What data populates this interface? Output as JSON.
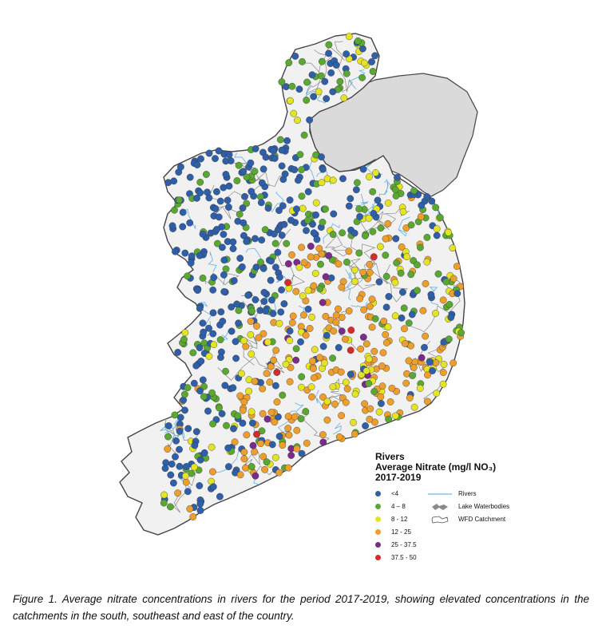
{
  "legend": {
    "title_line1": "Rivers",
    "title_line2": "Average Nitrate (mg/l NO₃)",
    "title_line3": "2017-2019",
    "classes": [
      {
        "label": "<4",
        "color": "#2f5fa8"
      },
      {
        "label": "4 – 8",
        "color": "#5aa832"
      },
      {
        "label": "8 - 12",
        "color": "#e4e425"
      },
      {
        "label": "12 - 25",
        "color": "#ee9e2c"
      },
      {
        "label": "25 - 37.5",
        "color": "#7d2a8c"
      },
      {
        "label": "37.5 - 50",
        "color": "#d92a2a"
      }
    ],
    "symbols": {
      "rivers": "Rivers",
      "lakes": "Lake Waterbodies",
      "catchment": "WFD Catchment"
    }
  },
  "map": {
    "colors": {
      "land": "#f1f1f1",
      "northern_ireland": "#dadada",
      "coast": "#444444",
      "river": "#6fb8e0",
      "catchment": "#7a7a7a"
    }
  },
  "caption": "Figure 1. Average nitrate concentrations in rivers for the period 2017-2019, showing elevated concentrations in the catchments in the south, southeast and east of the country."
}
